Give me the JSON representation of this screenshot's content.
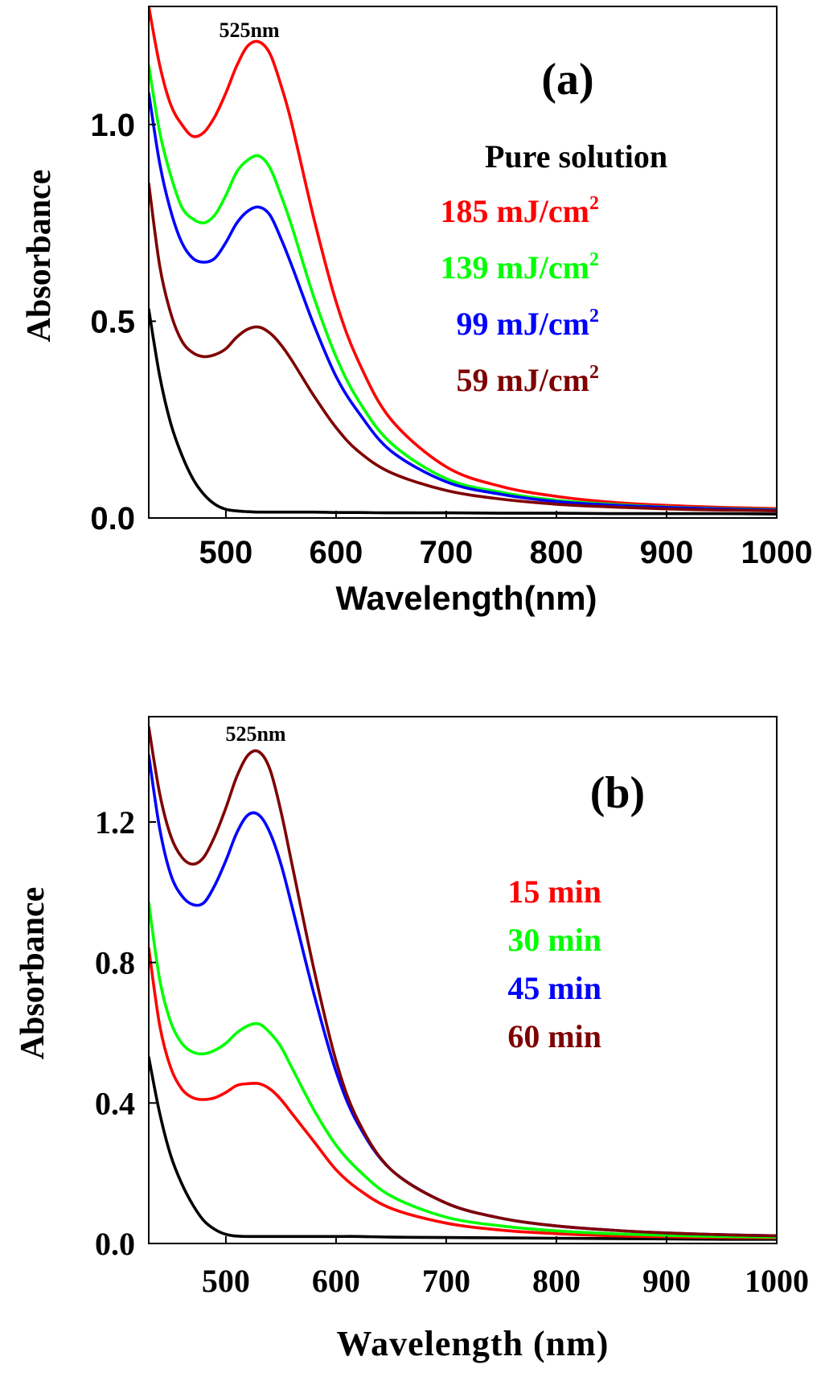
{
  "chart_data": [
    {
      "type": "line",
      "panel_label": "(a)",
      "xlabel": "Wavelength(nm)",
      "ylabel": "Absorbance",
      "xlim": [
        430,
        1000
      ],
      "ylim": [
        0,
        1.3
      ],
      "xticks": [
        "500",
        "600",
        "700",
        "800",
        "900",
        "1000"
      ],
      "yticks": [
        "0.0",
        "0.5",
        "1.0"
      ],
      "annotation": "525nm",
      "legend_placement": "right",
      "legend_title": "Pure solution",
      "x": [
        430,
        440,
        450,
        460,
        470,
        480,
        490,
        500,
        510,
        520,
        530,
        540,
        550,
        560,
        580,
        600,
        620,
        650,
        700,
        750,
        800,
        850,
        900,
        950,
        1000
      ],
      "series": [
        {
          "name": "",
          "color": "#000000",
          "values": [
            0.53,
            0.36,
            0.24,
            0.16,
            0.1,
            0.06,
            0.035,
            0.022,
            0.018,
            0.016,
            0.015,
            0.015,
            0.015,
            0.015,
            0.015,
            0.014,
            0.014,
            0.013,
            0.013,
            0.012,
            0.012,
            0.011,
            0.011,
            0.011,
            0.01
          ]
        },
        {
          "name": "185 mJ/cm",
          "sup": "2",
          "color": "#ff0000",
          "values": [
            1.3,
            1.15,
            1.05,
            1.0,
            0.97,
            0.98,
            1.02,
            1.08,
            1.15,
            1.2,
            1.21,
            1.18,
            1.1,
            1.0,
            0.76,
            0.55,
            0.4,
            0.25,
            0.13,
            0.08,
            0.055,
            0.04,
            0.032,
            0.027,
            0.024
          ]
        },
        {
          "name": "139 mJ/cm",
          "sup": "2",
          "color": "#00ff00",
          "values": [
            1.15,
            0.98,
            0.87,
            0.79,
            0.76,
            0.75,
            0.77,
            0.82,
            0.88,
            0.91,
            0.92,
            0.89,
            0.82,
            0.74,
            0.56,
            0.41,
            0.3,
            0.19,
            0.1,
            0.065,
            0.045,
            0.035,
            0.028,
            0.024,
            0.021
          ]
        },
        {
          "name": "99 mJ/cm",
          "sup": "2",
          "color": "#0000ff",
          "values": [
            1.08,
            0.9,
            0.78,
            0.7,
            0.66,
            0.65,
            0.66,
            0.7,
            0.75,
            0.78,
            0.79,
            0.77,
            0.71,
            0.64,
            0.49,
            0.36,
            0.27,
            0.17,
            0.092,
            0.06,
            0.042,
            0.033,
            0.027,
            0.023,
            0.02
          ]
        },
        {
          "name": "59 mJ/cm",
          "sup": "2",
          "color": "#7f0000",
          "values": [
            0.85,
            0.64,
            0.52,
            0.45,
            0.42,
            0.41,
            0.415,
            0.43,
            0.46,
            0.48,
            0.485,
            0.47,
            0.44,
            0.4,
            0.31,
            0.23,
            0.17,
            0.115,
            0.07,
            0.048,
            0.035,
            0.028,
            0.023,
            0.02,
            0.018
          ]
        }
      ]
    },
    {
      "type": "line",
      "panel_label": "(b)",
      "xlabel": "Wavelength (nm)",
      "ylabel": "Absorbance",
      "xlim": [
        430,
        1000
      ],
      "ylim": [
        0,
        1.5
      ],
      "xticks": [
        "500",
        "600",
        "700",
        "800",
        "900",
        "1000"
      ],
      "yticks": [
        "0.0",
        "0.4",
        "0.8",
        "1.2"
      ],
      "annotation": "525nm",
      "legend_placement": "right",
      "x": [
        430,
        440,
        450,
        460,
        470,
        480,
        490,
        500,
        510,
        520,
        530,
        540,
        550,
        560,
        580,
        600,
        620,
        650,
        700,
        750,
        800,
        850,
        900,
        950,
        1000
      ],
      "series": [
        {
          "name": "",
          "color": "#000000",
          "values": [
            0.53,
            0.37,
            0.25,
            0.17,
            0.11,
            0.065,
            0.04,
            0.026,
            0.021,
            0.02,
            0.02,
            0.02,
            0.02,
            0.02,
            0.02,
            0.02,
            0.02,
            0.018,
            0.017,
            0.016,
            0.015,
            0.014,
            0.013,
            0.012,
            0.012
          ]
        },
        {
          "name": "15 min",
          "color": "#ff0000",
          "values": [
            0.84,
            0.62,
            0.5,
            0.44,
            0.415,
            0.41,
            0.415,
            0.43,
            0.45,
            0.455,
            0.455,
            0.44,
            0.41,
            0.37,
            0.29,
            0.21,
            0.155,
            0.1,
            0.058,
            0.038,
            0.028,
            0.022,
            0.019,
            0.017,
            0.016
          ]
        },
        {
          "name": "30 min",
          "color": "#00ff00",
          "values": [
            0.97,
            0.75,
            0.63,
            0.57,
            0.545,
            0.54,
            0.55,
            0.57,
            0.6,
            0.62,
            0.625,
            0.6,
            0.56,
            0.5,
            0.38,
            0.28,
            0.21,
            0.135,
            0.075,
            0.05,
            0.036,
            0.028,
            0.023,
            0.02,
            0.018
          ]
        },
        {
          "name": "45 min",
          "color": "#0000ff",
          "values": [
            1.39,
            1.18,
            1.05,
            0.99,
            0.965,
            0.97,
            1.02,
            1.09,
            1.17,
            1.22,
            1.22,
            1.17,
            1.08,
            0.96,
            0.71,
            0.49,
            0.34,
            0.21,
            0.115,
            0.072,
            0.05,
            0.038,
            0.03,
            0.025,
            0.022
          ]
        },
        {
          "name": "60 min",
          "color": "#7f0000",
          "values": [
            1.47,
            1.28,
            1.16,
            1.1,
            1.08,
            1.1,
            1.16,
            1.24,
            1.33,
            1.39,
            1.4,
            1.35,
            1.23,
            1.08,
            0.78,
            0.52,
            0.35,
            0.21,
            0.115,
            0.072,
            0.05,
            0.038,
            0.03,
            0.025,
            0.022
          ]
        }
      ]
    }
  ]
}
